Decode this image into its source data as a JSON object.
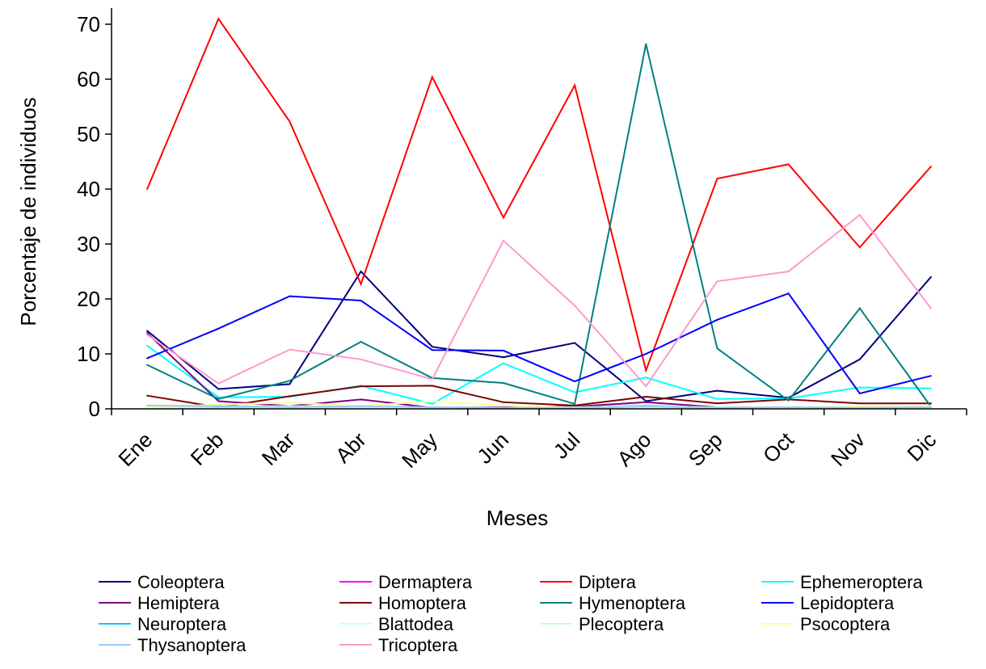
{
  "chart_data": {
    "type": "line",
    "xlabel": "Meses",
    "ylabel": "Porcentaje de individuos",
    "ylim": [
      0,
      70
    ],
    "yticks": [
      0,
      10,
      20,
      30,
      40,
      50,
      60,
      70
    ],
    "grid": false,
    "legend_position": "bottom",
    "categories": [
      "Ene",
      "Feb",
      "Mar",
      "Abr",
      "May",
      "Jun",
      "Jul",
      "Ago",
      "Sep",
      "Oct",
      "Nov",
      "Dic"
    ],
    "series": [
      {
        "name": "Coleoptera",
        "color": "#000080",
        "values": [
          14.2,
          3.6,
          4.5,
          25.0,
          11.3,
          9.4,
          12.0,
          1.4,
          3.3,
          2.0,
          9.0,
          24.0
        ]
      },
      {
        "name": "Dermaptera",
        "color": "#ff00ff",
        "values": [
          0.2,
          0.1,
          0.1,
          0.2,
          0.1,
          0.1,
          0.1,
          0.1,
          0.1,
          0.1,
          0.1,
          0.1
        ]
      },
      {
        "name": "Diptera",
        "color": "#ff0000",
        "values": [
          40.0,
          71.0,
          52.3,
          22.7,
          60.4,
          34.8,
          58.9,
          7.0,
          41.9,
          44.5,
          29.4,
          44.1
        ]
      },
      {
        "name": "Ephemeroptera",
        "color": "#00ffff",
        "values": [
          11.5,
          2.1,
          2.2,
          4.2,
          0.9,
          8.3,
          3.0,
          5.7,
          1.8,
          1.9,
          3.9,
          3.7
        ]
      },
      {
        "name": "Hemiptera",
        "color": "#800080",
        "values": [
          13.8,
          1.4,
          0.5,
          1.7,
          0.2,
          0.3,
          0.4,
          1.2,
          0.3,
          0.2,
          0.3,
          0.4
        ]
      },
      {
        "name": "Homoptera",
        "color": "#800000",
        "values": [
          2.4,
          0.3,
          2.3,
          4.1,
          4.2,
          1.2,
          0.6,
          2.2,
          1.0,
          1.7,
          1.0,
          1.0
        ]
      },
      {
        "name": "Hymenoptera",
        "color": "#008080",
        "values": [
          8.0,
          1.8,
          5.1,
          12.2,
          5.6,
          4.7,
          0.9,
          66.4,
          11.0,
          1.5,
          18.3,
          0.4
        ]
      },
      {
        "name": "Lepidoptera",
        "color": "#0000ff",
        "values": [
          9.2,
          14.6,
          20.5,
          19.7,
          10.7,
          10.6,
          5.0,
          10.0,
          16.2,
          21.0,
          2.8,
          6.0
        ]
      },
      {
        "name": "Neuroptera",
        "color": "#00ccff",
        "values": [
          0.3,
          0.2,
          0.2,
          0.3,
          0.2,
          0.2,
          0.2,
          0.6,
          0.2,
          0.3,
          0.2,
          0.3
        ]
      },
      {
        "name": "Blattodea",
        "color": "#ccffff",
        "values": [
          0.1,
          0.1,
          0.1,
          0.1,
          0.1,
          0.1,
          0.1,
          0.1,
          0.1,
          0.1,
          0.1,
          0.1
        ]
      },
      {
        "name": "Plecoptera",
        "color": "#ccffcc",
        "values": [
          0.1,
          0.5,
          0.5,
          0.4,
          0.3,
          0.2,
          0.3,
          0.5,
          0.3,
          0.2,
          0.3,
          0.5
        ]
      },
      {
        "name": "Psocoptera",
        "color": "#ffff99",
        "values": [
          0.3,
          0.8,
          1.1,
          0.5,
          1.4,
          0.6,
          0.2,
          0.3,
          0.2,
          0.3,
          0.4,
          0.5
        ]
      },
      {
        "name": "Thysanoptera",
        "color": "#99ccff",
        "values": [
          0.6,
          0.5,
          0.3,
          0.5,
          0.3,
          0.2,
          0.2,
          0.4,
          0.2,
          0.3,
          0.2,
          0.3
        ]
      },
      {
        "name": "Tricoptera",
        "color": "#ff99cc",
        "values": [
          13.5,
          4.6,
          10.8,
          9.0,
          5.4,
          30.6,
          18.8,
          4.1,
          23.2,
          25.0,
          35.3,
          18.3
        ]
      }
    ]
  }
}
